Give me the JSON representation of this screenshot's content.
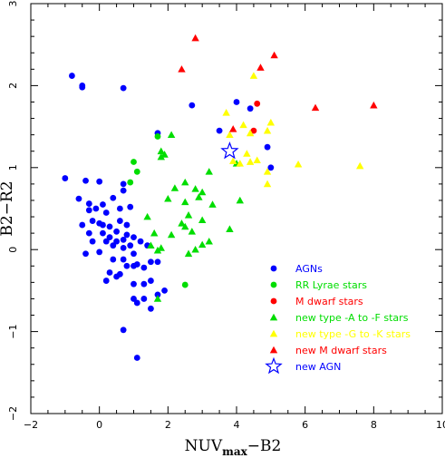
{
  "chart_data": {
    "type": "scatter",
    "xlabel": {
      "main": "NUV",
      "sub": "max",
      "rest": "−B2"
    },
    "ylabel": "B2−R2",
    "xlim": [
      -2,
      10
    ],
    "ylim": [
      -2,
      3
    ],
    "x_ticks": [
      -2,
      0,
      2,
      4,
      6,
      8,
      10
    ],
    "x_tick_labels": [
      "−2",
      "0",
      "2",
      "4",
      "6",
      "8",
      "10"
    ],
    "y_ticks": [
      -2,
      -1,
      0,
      1,
      2,
      3
    ],
    "y_tick_labels": [
      "−2",
      "−1",
      "0",
      "1",
      "2",
      "3"
    ],
    "x_minor_step": 0.5,
    "y_minor_step": 0.2,
    "grid": false,
    "legend_position": "bottom-right",
    "series": [
      {
        "name": "AGNs",
        "color": "#0000ff",
        "marker": "circle",
        "points": [
          [
            -0.8,
            2.12
          ],
          [
            -0.5,
            2.0
          ],
          [
            -0.5,
            1.98
          ],
          [
            0.7,
            1.97
          ],
          [
            -1.0,
            0.87
          ],
          [
            -0.4,
            0.84
          ],
          [
            0.0,
            0.83
          ],
          [
            -0.6,
            0.62
          ],
          [
            -0.3,
            0.56
          ],
          [
            0.1,
            0.55
          ],
          [
            0.4,
            0.63
          ],
          [
            0.7,
            0.8
          ],
          [
            0.7,
            0.72
          ],
          [
            -0.3,
            0.48
          ],
          [
            -0.1,
            0.5
          ],
          [
            0.2,
            0.45
          ],
          [
            0.6,
            0.5
          ],
          [
            0.9,
            0.52
          ],
          [
            -0.5,
            0.3
          ],
          [
            -0.2,
            0.35
          ],
          [
            0.0,
            0.32
          ],
          [
            0.1,
            0.3
          ],
          [
            0.3,
            0.28
          ],
          [
            0.6,
            0.35
          ],
          [
            0.8,
            0.3
          ],
          [
            -0.3,
            0.2
          ],
          [
            0.1,
            0.2
          ],
          [
            0.3,
            0.15
          ],
          [
            0.5,
            0.22
          ],
          [
            0.8,
            0.18
          ],
          [
            1.0,
            0.15
          ],
          [
            -0.2,
            0.1
          ],
          [
            0.2,
            0.1
          ],
          [
            0.5,
            0.1
          ],
          [
            0.7,
            0.12
          ],
          [
            0.9,
            0.05
          ],
          [
            1.2,
            0.1
          ],
          [
            -0.4,
            -0.05
          ],
          [
            0.0,
            -0.03
          ],
          [
            0.4,
            0.05
          ],
          [
            0.7,
            0.02
          ],
          [
            1.0,
            -0.05
          ],
          [
            1.4,
            0.05
          ],
          [
            0.4,
            -0.12
          ],
          [
            0.7,
            -0.12
          ],
          [
            1.0,
            -0.2
          ],
          [
            1.3,
            -0.22
          ],
          [
            0.3,
            -0.28
          ],
          [
            0.6,
            -0.3
          ],
          [
            0.8,
            -0.2
          ],
          [
            1.1,
            -0.18
          ],
          [
            1.5,
            -0.15
          ],
          [
            0.2,
            -0.38
          ],
          [
            0.5,
            -0.33
          ],
          [
            1.7,
            -0.15
          ],
          [
            1.0,
            -0.42
          ],
          [
            1.3,
            -0.42
          ],
          [
            1.5,
            -0.38
          ],
          [
            1.0,
            -0.6
          ],
          [
            1.3,
            -0.6
          ],
          [
            1.7,
            -0.55
          ],
          [
            1.9,
            -0.5
          ],
          [
            1.1,
            -0.65
          ],
          [
            1.5,
            -0.72
          ],
          [
            0.7,
            -0.98
          ],
          [
            1.1,
            -1.32
          ],
          [
            1.7,
            1.42
          ],
          [
            2.7,
            1.76
          ],
          [
            3.5,
            1.45
          ],
          [
            4.0,
            1.8
          ],
          [
            4.9,
            1.25
          ],
          [
            5.0,
            1.0
          ],
          [
            4.4,
            1.72
          ]
        ]
      },
      {
        "name": "RR Lyrae stars",
        "color": "#00dd00",
        "marker": "circle",
        "points": [
          [
            1.0,
            1.07
          ],
          [
            1.1,
            0.95
          ],
          [
            0.9,
            0.82
          ],
          [
            1.7,
            1.38
          ],
          [
            2.5,
            -0.43
          ]
        ]
      },
      {
        "name": "M dwarf stars",
        "color": "#ff0000",
        "marker": "circle",
        "points": [
          [
            4.6,
            1.78
          ],
          [
            4.5,
            1.45
          ]
        ]
      },
      {
        "name": "new type -A to -F stars",
        "color": "#00dd00",
        "marker": "triangle",
        "points": [
          [
            2.1,
            1.4
          ],
          [
            1.8,
            1.2
          ],
          [
            1.9,
            1.16
          ],
          [
            1.8,
            1.13
          ],
          [
            4.0,
            1.05
          ],
          [
            3.2,
            0.95
          ],
          [
            2.5,
            0.82
          ],
          [
            2.2,
            0.75
          ],
          [
            2.8,
            0.74
          ],
          [
            2.0,
            0.62
          ],
          [
            2.5,
            0.58
          ],
          [
            2.9,
            0.64
          ],
          [
            3.0,
            0.7
          ],
          [
            3.3,
            0.55
          ],
          [
            4.1,
            0.6
          ],
          [
            2.6,
            0.42
          ],
          [
            1.4,
            0.4
          ],
          [
            2.4,
            0.32
          ],
          [
            3.0,
            0.36
          ],
          [
            3.8,
            0.25
          ],
          [
            2.5,
            0.28
          ],
          [
            2.7,
            0.22
          ],
          [
            1.6,
            0.2
          ],
          [
            2.1,
            0.18
          ],
          [
            3.2,
            0.1
          ],
          [
            1.5,
            0.05
          ],
          [
            3.0,
            0.06
          ],
          [
            1.8,
            0.02
          ],
          [
            1.7,
            -0.01
          ],
          [
            2.6,
            -0.05
          ],
          [
            2.8,
            0.0
          ],
          [
            1.7,
            -0.6
          ]
        ]
      },
      {
        "name": "new type -G to -K stars",
        "color": "#ffff00",
        "marker": "triangle",
        "points": [
          [
            4.5,
            2.12
          ],
          [
            3.7,
            1.67
          ],
          [
            4.2,
            1.52
          ],
          [
            4.4,
            1.42
          ],
          [
            3.8,
            1.4
          ],
          [
            4.9,
            1.45
          ],
          [
            5.0,
            1.55
          ],
          [
            4.3,
            1.17
          ],
          [
            4.4,
            1.07
          ],
          [
            4.6,
            1.09
          ],
          [
            3.9,
            1.08
          ],
          [
            4.1,
            1.05
          ],
          [
            4.9,
            0.95
          ],
          [
            4.9,
            0.8
          ],
          [
            5.8,
            1.04
          ],
          [
            7.6,
            1.02
          ]
        ]
      },
      {
        "name": "new M dwarf stars",
        "color": "#ff0000",
        "marker": "triangle",
        "points": [
          [
            2.8,
            2.58
          ],
          [
            2.4,
            2.2
          ],
          [
            4.7,
            2.22
          ],
          [
            5.1,
            2.37
          ],
          [
            6.3,
            1.73
          ],
          [
            8.0,
            1.76
          ],
          [
            3.9,
            1.47
          ]
        ]
      },
      {
        "name": "new AGN",
        "color": "#0000ff",
        "marker": "star",
        "points": [
          [
            3.8,
            1.2
          ]
        ]
      }
    ]
  }
}
